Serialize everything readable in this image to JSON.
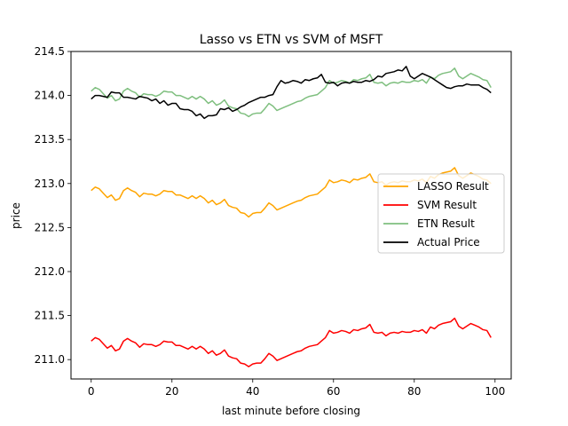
{
  "chart_data": {
    "type": "line",
    "title": "Lasso vs ETN vs SVM of MSFT",
    "xlabel": "last minute before closing",
    "ylabel": "price",
    "xlim": [
      -5,
      104
    ],
    "ylim": [
      210.78,
      214.5
    ],
    "xticks": [
      0,
      20,
      40,
      60,
      80,
      100
    ],
    "xtick_labels": [
      "0",
      "20",
      "40",
      "60",
      "80",
      "100"
    ],
    "yticks": [
      211.0,
      211.5,
      212.0,
      212.5,
      213.0,
      213.5,
      214.0,
      214.5
    ],
    "ytick_labels": [
      "211.0",
      "211.5",
      "212.0",
      "212.5",
      "213.0",
      "213.5",
      "214.0",
      "214.5"
    ],
    "grid": false,
    "legend_position": "center-right",
    "x": [
      0,
      1,
      2,
      3,
      4,
      5,
      6,
      7,
      8,
      9,
      10,
      11,
      12,
      13,
      14,
      15,
      16,
      17,
      18,
      19,
      20,
      21,
      22,
      23,
      24,
      25,
      26,
      27,
      28,
      29,
      30,
      31,
      32,
      33,
      34,
      35,
      36,
      37,
      38,
      39,
      40,
      41,
      42,
      43,
      44,
      45,
      46,
      47,
      48,
      49,
      50,
      51,
      52,
      53,
      54,
      55,
      56,
      57,
      58,
      59,
      60,
      61,
      62,
      63,
      64,
      65,
      66,
      67,
      68,
      69,
      70,
      71,
      72,
      73,
      74,
      75,
      76,
      77,
      78,
      79,
      80,
      81,
      82,
      83,
      84,
      85,
      86,
      87,
      88,
      89,
      90,
      91,
      92,
      93,
      94,
      95,
      96,
      97,
      98,
      99
    ],
    "series": [
      {
        "name": "LASSO Result",
        "color": "#ffa500",
        "values": [
          212.92,
          212.96,
          212.94,
          212.89,
          212.84,
          212.87,
          212.81,
          212.83,
          212.92,
          212.95,
          212.92,
          212.9,
          212.85,
          212.89,
          212.88,
          212.88,
          212.86,
          212.88,
          212.92,
          212.91,
          212.91,
          212.87,
          212.87,
          212.85,
          212.83,
          212.86,
          212.83,
          212.86,
          212.83,
          212.78,
          212.81,
          212.76,
          212.78,
          212.82,
          212.75,
          212.73,
          212.72,
          212.67,
          212.66,
          212.62,
          212.66,
          212.67,
          212.67,
          212.72,
          212.78,
          212.75,
          212.7,
          212.72,
          212.74,
          212.76,
          212.78,
          212.8,
          212.81,
          212.84,
          212.86,
          212.87,
          212.88,
          212.92,
          212.96,
          213.04,
          213.01,
          213.02,
          213.04,
          213.03,
          213.01,
          213.05,
          213.04,
          213.06,
          213.07,
          213.11,
          213.02,
          213.01,
          213.02,
          212.98,
          213.01,
          213.02,
          213.01,
          213.03,
          213.02,
          213.02,
          213.04,
          213.03,
          213.05,
          213.01,
          213.08,
          213.06,
          213.1,
          213.12,
          213.13,
          213.14,
          213.18,
          213.09,
          213.06,
          213.09,
          213.12,
          213.1,
          213.08,
          213.05,
          213.04,
          213.0
        ]
      },
      {
        "name": "SVM Result",
        "color": "#ff0000",
        "values": [
          211.21,
          211.25,
          211.23,
          211.18,
          211.13,
          211.16,
          211.1,
          211.12,
          211.21,
          211.24,
          211.21,
          211.19,
          211.14,
          211.18,
          211.17,
          211.17,
          211.15,
          211.17,
          211.21,
          211.2,
          211.2,
          211.16,
          211.16,
          211.14,
          211.12,
          211.15,
          211.12,
          211.15,
          211.12,
          211.07,
          211.1,
          211.05,
          211.07,
          211.11,
          211.04,
          211.02,
          211.01,
          210.96,
          210.95,
          210.92,
          210.95,
          210.96,
          210.96,
          211.01,
          211.07,
          211.04,
          210.99,
          211.01,
          211.03,
          211.05,
          211.07,
          211.09,
          211.1,
          211.13,
          211.15,
          211.16,
          211.17,
          211.21,
          211.25,
          211.33,
          211.3,
          211.31,
          211.33,
          211.32,
          211.3,
          211.34,
          211.33,
          211.35,
          211.36,
          211.4,
          211.31,
          211.3,
          211.31,
          211.27,
          211.3,
          211.31,
          211.3,
          211.32,
          211.31,
          211.31,
          211.33,
          211.32,
          211.34,
          211.3,
          211.37,
          211.35,
          211.39,
          211.41,
          211.42,
          211.43,
          211.47,
          211.38,
          211.35,
          211.38,
          211.41,
          211.39,
          211.37,
          211.34,
          211.33,
          211.25
        ]
      },
      {
        "name": "ETN Result",
        "color": "#7fbf7f",
        "values": [
          214.05,
          214.09,
          214.07,
          214.02,
          213.97,
          214.0,
          213.94,
          213.96,
          214.05,
          214.08,
          214.05,
          214.03,
          213.98,
          214.02,
          214.01,
          214.01,
          213.99,
          214.01,
          214.05,
          214.04,
          214.04,
          214.0,
          214.0,
          213.98,
          213.96,
          213.99,
          213.96,
          213.99,
          213.96,
          213.91,
          213.94,
          213.89,
          213.91,
          213.95,
          213.88,
          213.86,
          213.85,
          213.8,
          213.79,
          213.76,
          213.79,
          213.8,
          213.8,
          213.85,
          213.91,
          213.88,
          213.83,
          213.85,
          213.87,
          213.89,
          213.91,
          213.93,
          213.94,
          213.97,
          213.99,
          214.0,
          214.01,
          214.05,
          214.09,
          214.17,
          214.14,
          214.15,
          214.17,
          214.16,
          214.14,
          214.18,
          214.17,
          214.19,
          214.2,
          214.24,
          214.15,
          214.14,
          214.15,
          214.11,
          214.14,
          214.15,
          214.14,
          214.16,
          214.15,
          214.15,
          214.17,
          214.16,
          214.18,
          214.14,
          214.21,
          214.19,
          214.23,
          214.25,
          214.26,
          214.27,
          214.31,
          214.22,
          214.19,
          214.22,
          214.25,
          214.23,
          214.21,
          214.18,
          214.17,
          214.09
        ]
      },
      {
        "name": "Actual Price",
        "color": "#000000",
        "values": [
          213.96,
          214.0,
          214.0,
          213.99,
          213.98,
          214.04,
          214.03,
          214.03,
          213.98,
          213.98,
          213.97,
          213.96,
          213.99,
          213.98,
          213.97,
          213.94,
          213.96,
          213.91,
          213.94,
          213.89,
          213.91,
          213.91,
          213.85,
          213.84,
          213.84,
          213.82,
          213.77,
          213.79,
          213.74,
          213.77,
          213.77,
          213.78,
          213.85,
          213.84,
          213.86,
          213.82,
          213.84,
          213.87,
          213.89,
          213.92,
          213.94,
          213.96,
          213.98,
          213.98,
          214.0,
          214.01,
          214.1,
          214.17,
          214.14,
          214.15,
          214.17,
          214.16,
          214.14,
          214.18,
          214.17,
          214.19,
          214.2,
          214.24,
          214.15,
          214.14,
          214.15,
          214.11,
          214.14,
          214.15,
          214.14,
          214.16,
          214.15,
          214.15,
          214.17,
          214.16,
          214.18,
          214.22,
          214.21,
          214.25,
          214.26,
          214.27,
          214.29,
          214.28,
          214.33,
          214.22,
          214.19,
          214.22,
          214.25,
          214.23,
          214.21,
          214.18,
          214.15,
          214.12,
          214.09,
          214.08,
          214.1,
          214.11,
          214.11,
          214.13,
          214.12,
          214.12,
          214.12,
          214.09,
          214.07,
          214.03
        ]
      }
    ]
  }
}
